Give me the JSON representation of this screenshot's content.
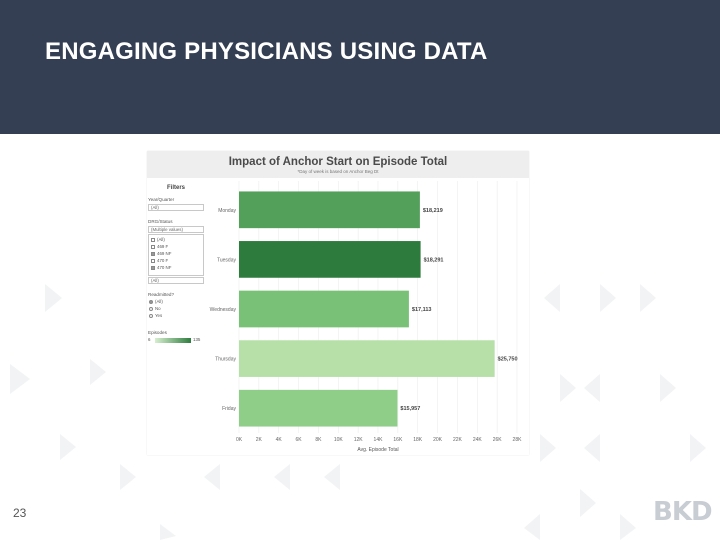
{
  "slide": {
    "title": "ENGAGING PHYSICIANS USING DATA",
    "page_number": "23",
    "logo_text": "BKD",
    "header_color": "#343f53"
  },
  "dashboard": {
    "title": "Impact of Anchor Start on Episode Total",
    "subtitle": "*Day of week is based on Anchor Beg Dt",
    "filters": {
      "heading": "Filters",
      "year_quarter": {
        "label": "Year/Quarter",
        "value": "(All)"
      },
      "drg_status": {
        "label": "DRG/Status",
        "value": "(Multiple values)",
        "items": [
          {
            "label": "(All)",
            "checked": false
          },
          {
            "label": "469 F",
            "checked": false
          },
          {
            "label": "469 NF",
            "checked": true
          },
          {
            "label": "470 F",
            "checked": false
          },
          {
            "label": "470 NF",
            "checked": true
          }
        ],
        "footer": "(All)"
      },
      "readmitted": {
        "label": "Readmitted?",
        "options": [
          {
            "label": "(All)",
            "selected": true
          },
          {
            "label": "No",
            "selected": false
          },
          {
            "label": "Yes",
            "selected": false
          }
        ]
      },
      "episodes_legend": {
        "label": "Episodes",
        "min": "6",
        "max": "135"
      }
    }
  },
  "chart_data": {
    "type": "bar",
    "orientation": "horizontal",
    "title": "Impact of Anchor Start on Episode Total",
    "subtitle": "*Day of week is based on Anchor Beg Dt",
    "categories": [
      "Monday",
      "Tuesday",
      "Wednesday",
      "Thursday",
      "Friday"
    ],
    "values": [
      18219,
      18291,
      17113,
      25750,
      15957
    ],
    "value_labels": [
      "$18,219",
      "$18,291",
      "$17,113",
      "$25,750",
      "$15,957"
    ],
    "bar_colors": [
      "#52a05a",
      "#2e7b3e",
      "#78c177",
      "#b6e0a8",
      "#8fce89"
    ],
    "xlabel": "Avg. Episode Total",
    "xlim": [
      0,
      28000
    ],
    "x_ticks": [
      "0K",
      "2K",
      "4K",
      "6K",
      "8K",
      "10K",
      "12K",
      "14K",
      "16K",
      "18K",
      "20K",
      "22K",
      "24K",
      "26K",
      "28K"
    ],
    "grid": true
  }
}
